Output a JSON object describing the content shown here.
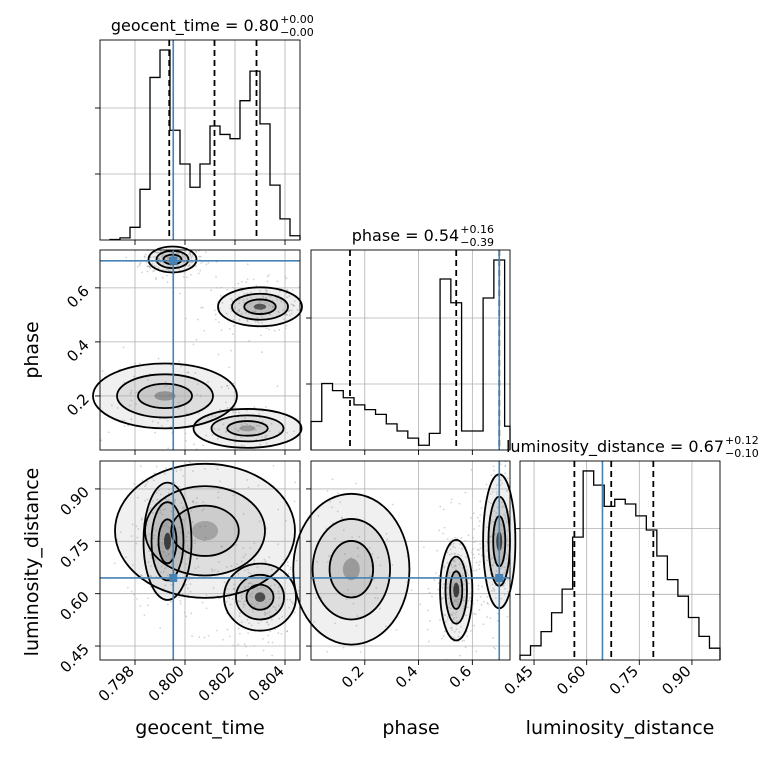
{
  "parameters": [
    "geocent_time",
    "phase",
    "luminosity_distance"
  ],
  "colors": {
    "truth": "#4682b4",
    "line": "#000000",
    "density": "#808080"
  },
  "chart_data": [
    {
      "type": "histogram",
      "parameter": "geocent_time",
      "title": "geocent_time = 0.80",
      "title_upper": "+0.00",
      "title_lower": "−0.00",
      "xlim": [
        0.7966,
        0.8046
      ],
      "bins_x": [
        0.797,
        0.7974,
        0.7978,
        0.7982,
        0.7986,
        0.799,
        0.7994,
        0.7998,
        0.8002,
        0.8006,
        0.801,
        0.8014,
        0.8018,
        0.8022,
        0.8026,
        0.803,
        0.8034,
        0.8038,
        0.8042,
        0.8046
      ],
      "counts": [
        0.002,
        0.01,
        0.06,
        0.24,
        0.77,
        0.9,
        0.52,
        0.36,
        0.25,
        0.36,
        0.54,
        0.5,
        0.48,
        0.66,
        0.8,
        0.55,
        0.26,
        0.1,
        0.02
      ],
      "quantiles": [
        0.79937,
        0.80118,
        0.80286
      ],
      "truth": 0.79953,
      "xticks": [
        0.798,
        0.8,
        0.802,
        0.804
      ],
      "xtick_labels": [
        "0.798",
        "0.800",
        "0.802",
        "0.804"
      ],
      "xlabel": "geocent_time"
    },
    {
      "type": "histogram",
      "parameter": "phase",
      "title": "phase = 0.54",
      "title_upper": "+0.16",
      "title_lower": "−0.39",
      "xlim": [
        0.0,
        0.74
      ],
      "bins_x": [
        0.0,
        0.04,
        0.08,
        0.12,
        0.16,
        0.2,
        0.24,
        0.28,
        0.32,
        0.36,
        0.4,
        0.44,
        0.48,
        0.52,
        0.56,
        0.6,
        0.64,
        0.68,
        0.72,
        0.74
      ],
      "counts": [
        0.12,
        0.28,
        0.25,
        0.22,
        0.19,
        0.17,
        0.15,
        0.11,
        0.08,
        0.05,
        0.02,
        0.07,
        0.72,
        0.62,
        0.08,
        0.08,
        0.64,
        0.8,
        0.1
      ],
      "quantiles": [
        0.145,
        0.54,
        0.7
      ],
      "truth": 0.7,
      "xticks": [
        0.2,
        0.4,
        0.6
      ],
      "xtick_labels": [
        "0.2",
        "0.4",
        "0.6"
      ],
      "xlabel": "phase"
    },
    {
      "type": "histogram",
      "parameter": "luminosity_distance",
      "title": "luminosity_distance = 0.67",
      "title_upper": "+0.12",
      "title_lower": "−0.10",
      "xlim": [
        0.41,
        0.98
      ],
      "bins_x": [
        0.41,
        0.44,
        0.47,
        0.5,
        0.53,
        0.56,
        0.59,
        0.62,
        0.65,
        0.68,
        0.71,
        0.74,
        0.77,
        0.8,
        0.83,
        0.86,
        0.89,
        0.92,
        0.95,
        0.98
      ],
      "counts": [
        0.02,
        0.06,
        0.12,
        0.2,
        0.3,
        0.52,
        0.8,
        0.74,
        0.65,
        0.68,
        0.66,
        0.61,
        0.55,
        0.44,
        0.34,
        0.27,
        0.18,
        0.1,
        0.05
      ],
      "quantiles": [
        0.565,
        0.67,
        0.79
      ],
      "truth": 0.645,
      "xticks": [
        0.45,
        0.6,
        0.75,
        0.9
      ],
      "xtick_labels": [
        "0.45",
        "0.60",
        "0.75",
        "0.90"
      ],
      "xlabel": "luminosity_distance"
    },
    {
      "type": "2d-density",
      "x_parameter": "geocent_time",
      "y_parameter": "phase",
      "xlim": [
        0.7966,
        0.8046
      ],
      "ylim": [
        0.0,
        0.74
      ],
      "yticks": [
        0.2,
        0.4,
        0.6
      ],
      "ytick_labels": [
        "0.2",
        "0.4",
        "0.6"
      ],
      "ylabel": "phase",
      "truth": [
        0.79953,
        0.7
      ],
      "modes": [
        {
          "x": 0.7995,
          "y": 0.705,
          "sx": 0.0004,
          "sy": 0.02,
          "w": 1.0
        },
        {
          "x": 0.803,
          "y": 0.53,
          "sx": 0.0007,
          "sy": 0.03,
          "w": 0.8
        },
        {
          "x": 0.7992,
          "y": 0.2,
          "sx": 0.0012,
          "sy": 0.05,
          "w": 0.4
        },
        {
          "x": 0.8025,
          "y": 0.08,
          "sx": 0.0009,
          "sy": 0.03,
          "w": 0.35
        }
      ]
    },
    {
      "type": "2d-density",
      "x_parameter": "geocent_time",
      "y_parameter": "luminosity_distance",
      "xlim": [
        0.7966,
        0.8046
      ],
      "ylim": [
        0.41,
        0.98
      ],
      "yticks": [
        0.45,
        0.6,
        0.75,
        0.9
      ],
      "ytick_labels": [
        "0.45",
        "0.60",
        "0.75",
        "0.90"
      ],
      "ylabel": "luminosity_distance",
      "truth": [
        0.79953,
        0.645
      ],
      "modes": [
        {
          "x": 0.7993,
          "y": 0.75,
          "sx": 0.0004,
          "sy": 0.07,
          "w": 1.0
        },
        {
          "x": 0.803,
          "y": 0.59,
          "sx": 0.0006,
          "sy": 0.04,
          "w": 0.9
        },
        {
          "x": 0.8008,
          "y": 0.78,
          "sx": 0.0015,
          "sy": 0.08,
          "w": 0.3
        }
      ]
    },
    {
      "type": "2d-density",
      "x_parameter": "phase",
      "y_parameter": "luminosity_distance",
      "xlim": [
        0.0,
        0.74
      ],
      "ylim": [
        0.41,
        0.98
      ],
      "truth": [
        0.7,
        0.645
      ],
      "modes": [
        {
          "x": 0.54,
          "y": 0.61,
          "sx": 0.025,
          "sy": 0.06,
          "w": 1.0
        },
        {
          "x": 0.7,
          "y": 0.75,
          "sx": 0.025,
          "sy": 0.08,
          "w": 1.0
        },
        {
          "x": 0.15,
          "y": 0.67,
          "sx": 0.09,
          "sy": 0.09,
          "w": 0.35
        }
      ]
    }
  ]
}
